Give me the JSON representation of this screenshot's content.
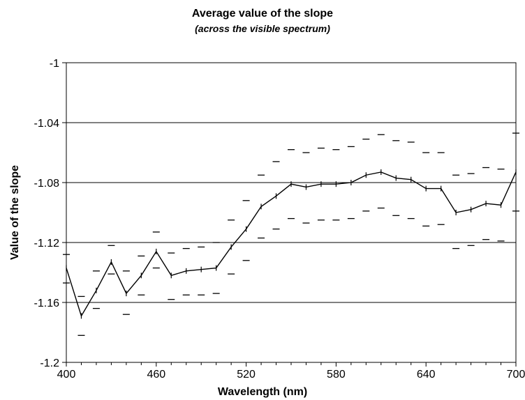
{
  "chart_data": {
    "type": "line",
    "title": "Average value of the slope",
    "subtitle": "(across the visible spectrum)",
    "xlabel": "Wavelength (nm)",
    "ylabel": "Value of the slope",
    "xlim": [
      400,
      700
    ],
    "ylim": [
      -1.2,
      -1
    ],
    "xticks": [
      "400",
      "460",
      "520",
      "580",
      "640",
      "700"
    ],
    "xtick_values": [
      400,
      460,
      520,
      580,
      640,
      700
    ],
    "yticks": [
      "-1",
      "-1.04",
      "-1.08",
      "-1.12",
      "-1.16",
      "-1.2"
    ],
    "ytick_values": [
      -1,
      -1.04,
      -1.08,
      -1.12,
      -1.16,
      -1.2
    ],
    "grid": "horizontal",
    "legend": "none",
    "x": [
      400,
      410,
      420,
      430,
      440,
      450,
      460,
      470,
      480,
      490,
      500,
      510,
      520,
      530,
      540,
      550,
      560,
      570,
      580,
      590,
      600,
      610,
      620,
      630,
      640,
      650,
      660,
      670,
      680,
      690,
      700
    ],
    "series": [
      {
        "style": "line-with-ticks",
        "color": "#000000",
        "values": [
          -1.137,
          -1.169,
          -1.152,
          -1.133,
          -1.154,
          -1.142,
          -1.126,
          -1.142,
          -1.139,
          -1.138,
          -1.137,
          -1.123,
          -1.111,
          -1.096,
          -1.089,
          -1.081,
          -1.083,
          -1.081,
          -1.081,
          -1.08,
          -1.075,
          -1.073,
          -1.077,
          -1.078,
          -1.084,
          -1.084,
          -1.1,
          -1.098,
          -1.094,
          -1.095,
          -1.073
        ]
      },
      {
        "style": "dash-markers",
        "color": "#000000",
        "values": [
          -1.128,
          -1.156,
          -1.139,
          -1.122,
          -1.139,
          -1.129,
          -1.113,
          -1.127,
          -1.124,
          -1.123,
          -1.12,
          -1.105,
          -1.092,
          -1.075,
          -1.066,
          -1.058,
          -1.06,
          -1.057,
          -1.058,
          -1.056,
          -1.051,
          -1.048,
          -1.052,
          -1.053,
          -1.06,
          -1.06,
          -1.075,
          -1.074,
          -1.07,
          -1.071,
          -1.047
        ]
      },
      {
        "style": "dash-markers",
        "color": "#000000",
        "values": [
          -1.147,
          -1.182,
          -1.164,
          -1.141,
          -1.168,
          -1.155,
          -1.137,
          -1.158,
          -1.155,
          -1.155,
          -1.154,
          -1.141,
          -1.132,
          -1.117,
          -1.111,
          -1.104,
          -1.107,
          -1.105,
          -1.105,
          -1.104,
          -1.099,
          -1.097,
          -1.102,
          -1.104,
          -1.109,
          -1.108,
          -1.124,
          -1.122,
          -1.118,
          -1.119,
          -1.099
        ]
      }
    ]
  }
}
